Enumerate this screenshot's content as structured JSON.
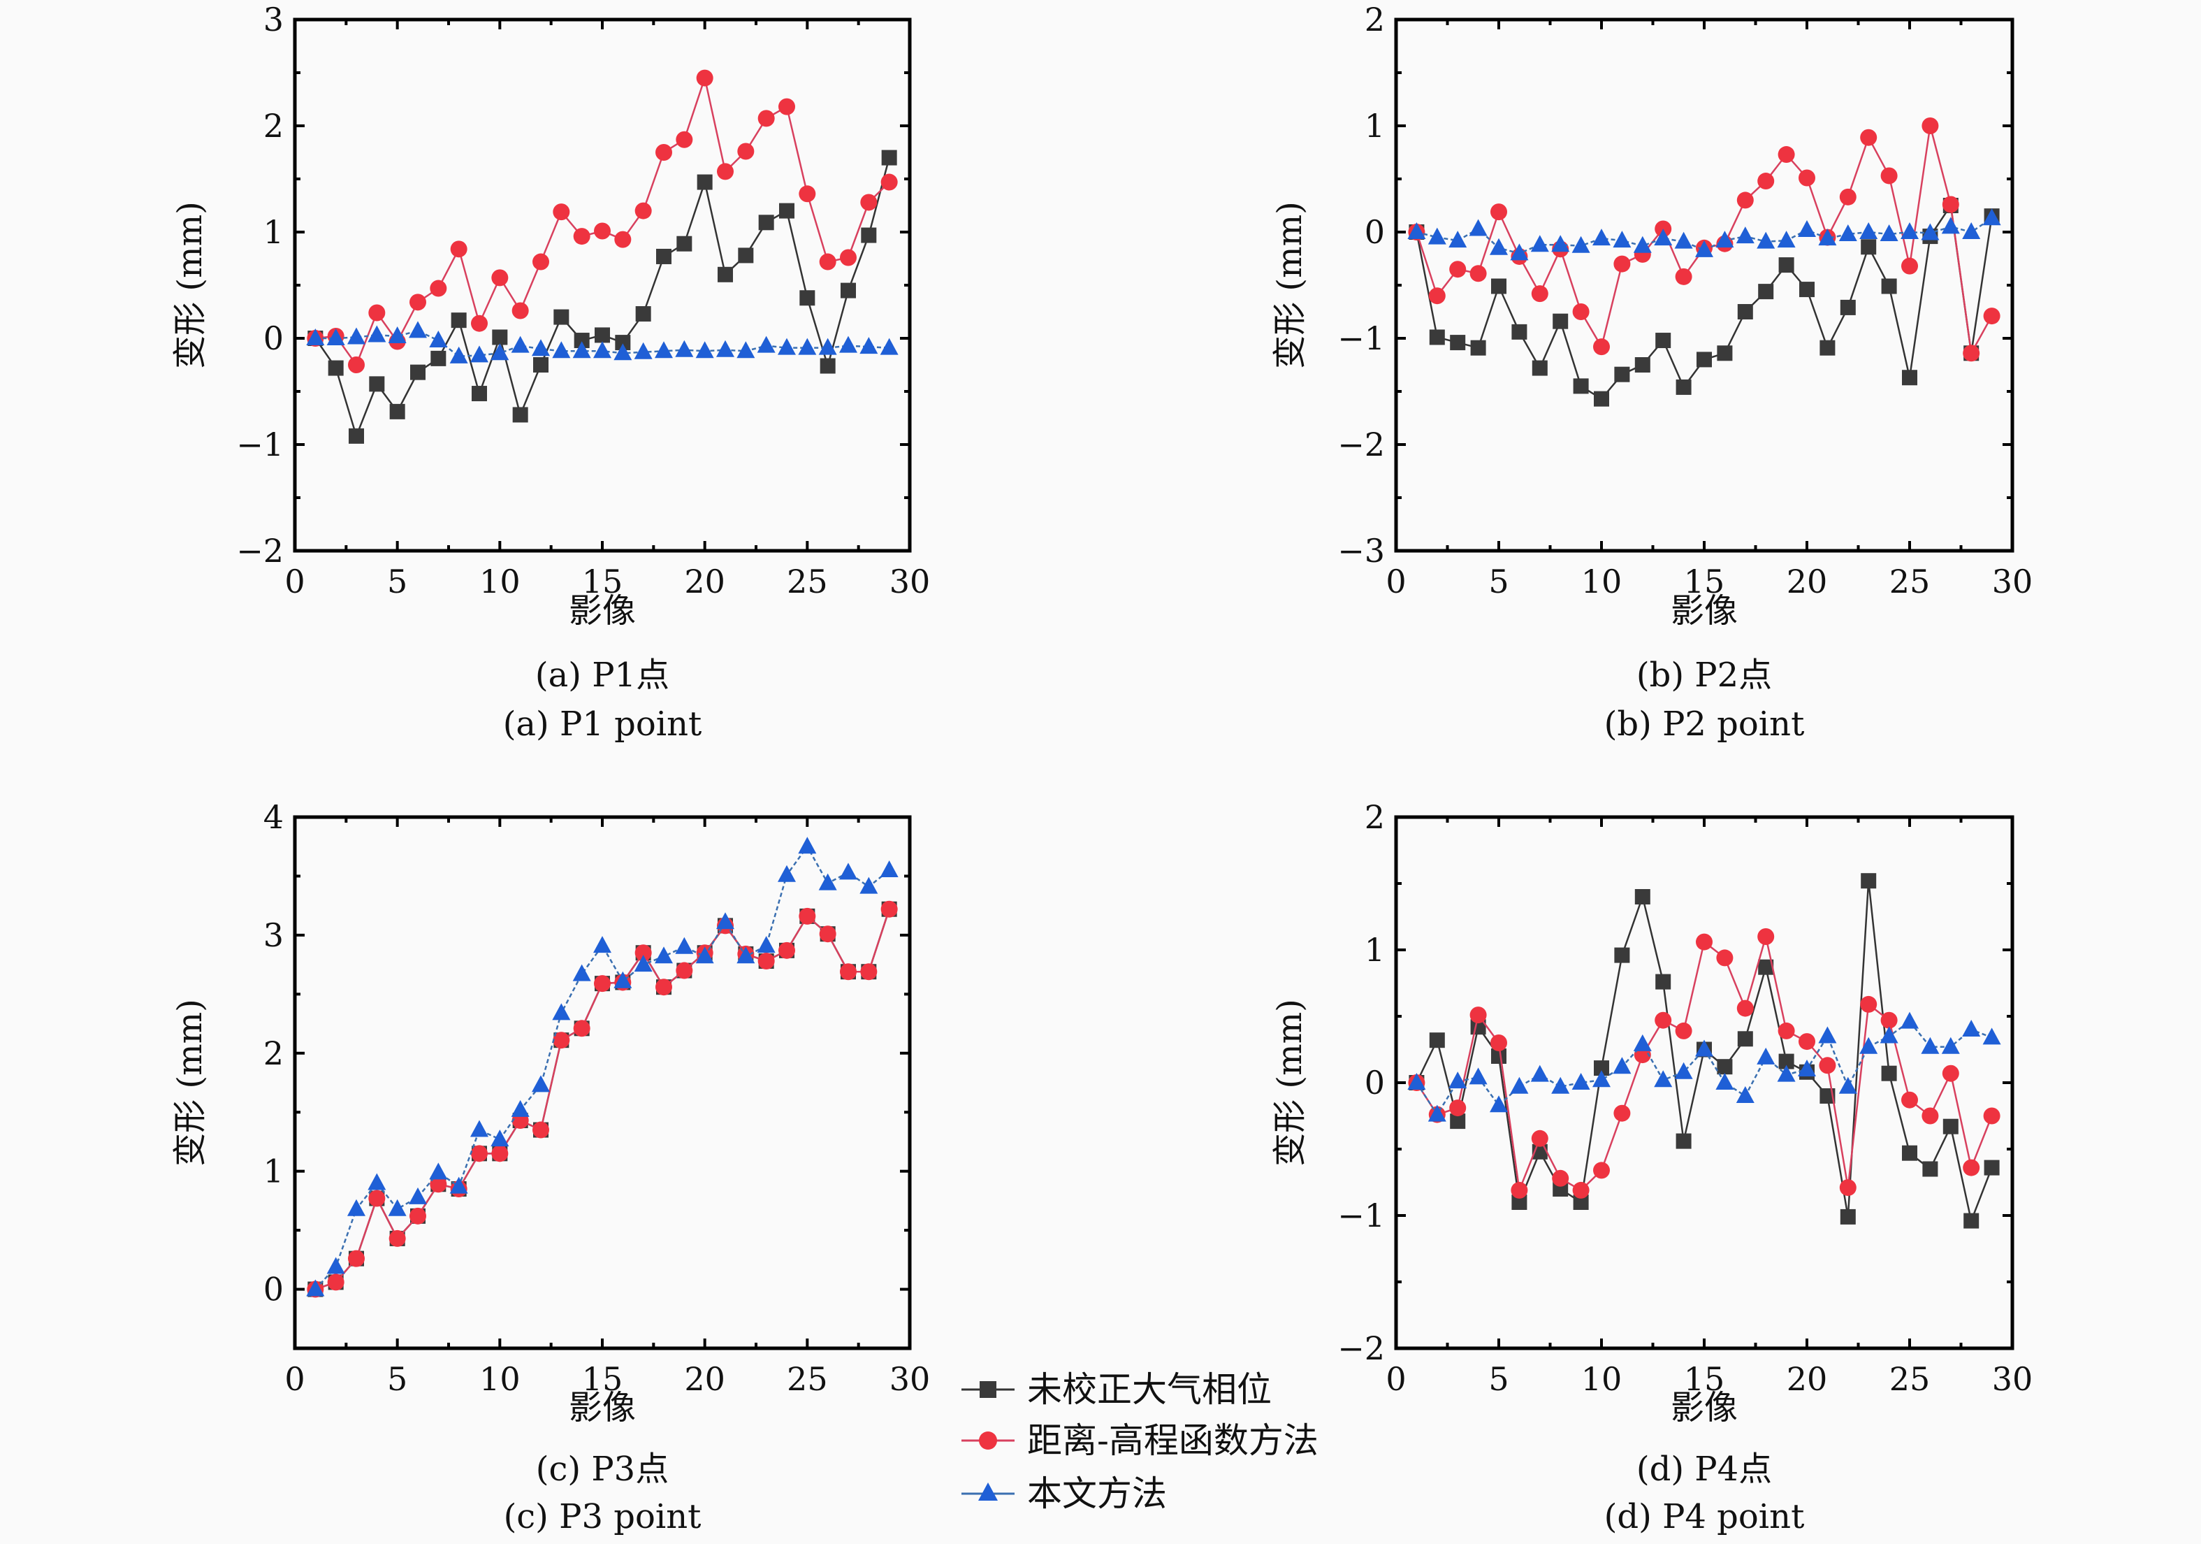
{
  "figure": {
    "series_style": {
      "uncorrected": {
        "color": "#3a3a3a",
        "line_color": "#333333",
        "marker": "square"
      },
      "distance_elevation": {
        "color": "#ee3340",
        "line_color": "#d8405e",
        "marker": "circle"
      },
      "proposed": {
        "color": "#1f5fd6",
        "line_color": "#3a6fb0",
        "marker": "triangle"
      }
    },
    "legend": [
      {
        "key": "uncorrected",
        "label": "未校正大气相位"
      },
      {
        "key": "distance_elevation",
        "label": "距离-高程函数方法"
      },
      {
        "key": "proposed",
        "label": "本文方法"
      }
    ]
  },
  "chart_data": [
    {
      "type": "line",
      "id": "a",
      "caption_cn": "(a) P1点",
      "caption_en": "(a) P1 point",
      "xlabel": "影像",
      "ylabel": "变形 (mm)",
      "xlim": [
        0,
        30
      ],
      "ylim": [
        -2,
        3
      ],
      "xticks": [
        0,
        5,
        10,
        15,
        20,
        25,
        30
      ],
      "yticks": [
        -2,
        -1,
        0,
        1,
        2,
        3
      ],
      "ytick_labels": [
        "−2",
        "−1",
        "0",
        "1",
        "2",
        "3"
      ],
      "grid": false,
      "x": [
        1,
        2,
        3,
        4,
        5,
        6,
        7,
        8,
        9,
        10,
        11,
        12,
        13,
        14,
        15,
        16,
        17,
        18,
        19,
        20,
        21,
        22,
        23,
        24,
        25,
        26,
        27,
        28,
        29
      ],
      "series": [
        {
          "key": "uncorrected",
          "name": "未校正大气相位",
          "values": [
            0,
            -0.28,
            -0.92,
            -0.43,
            -0.69,
            -0.32,
            -0.19,
            0.17,
            -0.52,
            0.01,
            -0.72,
            -0.25,
            0.2,
            -0.02,
            0.03,
            -0.04,
            0.23,
            0.77,
            0.89,
            1.47,
            0.6,
            0.78,
            1.09,
            1.2,
            0.38,
            -0.26,
            0.45,
            0.97,
            1.7
          ]
        },
        {
          "key": "distance_elevation",
          "name": "距离-高程函数方法",
          "values": [
            0,
            0.02,
            -0.25,
            0.24,
            -0.03,
            0.34,
            0.47,
            0.84,
            0.14,
            0.57,
            0.26,
            0.72,
            1.19,
            0.96,
            1.01,
            0.93,
            1.2,
            1.75,
            1.87,
            2.45,
            1.57,
            1.76,
            2.07,
            2.18,
            1.36,
            0.72,
            0.76,
            1.28,
            1.47
          ]
        },
        {
          "key": "proposed",
          "name": "本文方法",
          "values": [
            0,
            0,
            0.01,
            0.03,
            0.02,
            0.07,
            -0.02,
            -0.17,
            -0.16,
            -0.14,
            -0.07,
            -0.1,
            -0.12,
            -0.12,
            -0.12,
            -0.14,
            -0.13,
            -0.12,
            -0.11,
            -0.12,
            -0.11,
            -0.12,
            -0.07,
            -0.09,
            -0.09,
            -0.09,
            -0.07,
            -0.08,
            -0.09
          ]
        }
      ]
    },
    {
      "type": "line",
      "id": "b",
      "caption_cn": "(b) P2点",
      "caption_en": "(b) P2 point",
      "xlabel": "影像",
      "ylabel": "变形 (mm)",
      "xlim": [
        0,
        30
      ],
      "ylim": [
        -3,
        2
      ],
      "xticks": [
        0,
        5,
        10,
        15,
        20,
        25,
        30
      ],
      "yticks": [
        -3,
        -2,
        -1,
        0,
        1,
        2
      ],
      "ytick_labels": [
        "−3",
        "−2",
        "−1",
        "0",
        "1",
        "2"
      ],
      "grid": false,
      "x": [
        1,
        2,
        3,
        4,
        5,
        6,
        7,
        8,
        9,
        10,
        11,
        12,
        13,
        14,
        15,
        16,
        17,
        18,
        19,
        20,
        21,
        22,
        23,
        24,
        25,
        26,
        27,
        28,
        29
      ],
      "series": [
        {
          "key": "uncorrected",
          "name": "未校正大气相位",
          "values": [
            0,
            -0.99,
            -1.04,
            -1.09,
            -0.51,
            -0.94,
            -1.28,
            -0.84,
            -1.45,
            -1.57,
            -1.34,
            -1.25,
            -1.02,
            -1.46,
            -1.2,
            -1.14,
            -0.75,
            -0.56,
            -0.31,
            -0.54,
            -1.09,
            -0.71,
            -0.14,
            -0.51,
            -1.37,
            -0.04,
            0.25,
            -1.14,
            0.15
          ]
        },
        {
          "key": "distance_elevation",
          "name": "距离-高程函数方法",
          "values": [
            0,
            -0.6,
            -0.35,
            -0.39,
            0.19,
            -0.23,
            -0.58,
            -0.16,
            -0.75,
            -1.08,
            -0.3,
            -0.21,
            0.03,
            -0.42,
            -0.15,
            -0.11,
            0.3,
            0.48,
            0.73,
            0.51,
            -0.05,
            0.33,
            0.89,
            0.53,
            -0.32,
            1.0,
            0.26,
            -1.14,
            -0.79
          ]
        },
        {
          "key": "proposed",
          "name": "本文方法",
          "values": [
            0,
            -0.05,
            -0.08,
            0.03,
            -0.15,
            -0.2,
            -0.12,
            -0.12,
            -0.13,
            -0.06,
            -0.08,
            -0.13,
            -0.06,
            -0.09,
            -0.17,
            -0.08,
            -0.04,
            -0.09,
            -0.08,
            0.02,
            -0.06,
            -0.02,
            0.0,
            -0.02,
            0.0,
            -0.01,
            0.05,
            0.0,
            0.13
          ]
        }
      ]
    },
    {
      "type": "line",
      "id": "c",
      "caption_cn": "(c) P3点",
      "caption_en": "(c) P3 point",
      "xlabel": "影像",
      "ylabel": "变形 (mm)",
      "xlim": [
        0,
        30
      ],
      "ylim": [
        -0.5,
        4
      ],
      "xticks": [
        0,
        5,
        10,
        15,
        20,
        25,
        30
      ],
      "yticks": [
        0,
        1,
        2,
        3,
        4
      ],
      "ytick_labels": [
        "0",
        "1",
        "2",
        "3",
        "4"
      ],
      "grid": false,
      "x": [
        1,
        2,
        3,
        4,
        5,
        6,
        7,
        8,
        9,
        10,
        11,
        12,
        13,
        14,
        15,
        16,
        17,
        18,
        19,
        20,
        21,
        22,
        23,
        24,
        25,
        26,
        27,
        28,
        29
      ],
      "series": [
        {
          "key": "uncorrected",
          "name": "未校正大气相位",
          "values": [
            0,
            0.06,
            0.26,
            0.77,
            0.43,
            0.62,
            0.89,
            0.85,
            1.15,
            1.15,
            1.43,
            1.35,
            2.11,
            2.21,
            2.59,
            2.6,
            2.85,
            2.56,
            2.7,
            2.85,
            3.08,
            2.84,
            2.78,
            2.87,
            3.16,
            3.01,
            2.69,
            2.69,
            3.22
          ]
        },
        {
          "key": "distance_elevation",
          "name": "距离-高程函数方法",
          "values": [
            0,
            0.06,
            0.26,
            0.77,
            0.43,
            0.62,
            0.89,
            0.85,
            1.15,
            1.15,
            1.43,
            1.35,
            2.11,
            2.21,
            2.59,
            2.6,
            2.85,
            2.56,
            2.7,
            2.85,
            3.08,
            2.84,
            2.78,
            2.87,
            3.16,
            3.01,
            2.69,
            2.69,
            3.22
          ]
        },
        {
          "key": "proposed",
          "name": "本文方法",
          "values": [
            0,
            0.19,
            0.68,
            0.9,
            0.68,
            0.78,
            0.99,
            0.87,
            1.35,
            1.27,
            1.52,
            1.73,
            2.34,
            2.67,
            2.91,
            2.61,
            2.75,
            2.82,
            2.9,
            2.82,
            3.11,
            2.82,
            2.91,
            3.51,
            3.75,
            3.44,
            3.53,
            3.41,
            3.55
          ]
        }
      ]
    },
    {
      "type": "line",
      "id": "d",
      "caption_cn": "(d) P4点",
      "caption_en": "(d) P4 point",
      "xlabel": "影像",
      "ylabel": "变形 (mm)",
      "xlim": [
        0,
        30
      ],
      "ylim": [
        -2,
        2
      ],
      "xticks": [
        0,
        5,
        10,
        15,
        20,
        25,
        30
      ],
      "yticks": [
        -2,
        -1,
        0,
        1,
        2
      ],
      "ytick_labels": [
        "−2",
        "−1",
        "0",
        "1",
        "2"
      ],
      "grid": false,
      "x": [
        1,
        2,
        3,
        4,
        5,
        6,
        7,
        8,
        9,
        10,
        11,
        12,
        13,
        14,
        15,
        16,
        17,
        18,
        19,
        20,
        21,
        22,
        23,
        24,
        25,
        26,
        27,
        28,
        29
      ],
      "series": [
        {
          "key": "uncorrected",
          "name": "未校正大气相位",
          "values": [
            0,
            0.32,
            -0.29,
            0.42,
            0.2,
            -0.9,
            -0.52,
            -0.8,
            -0.9,
            0.11,
            0.96,
            1.4,
            0.76,
            -0.44,
            0.25,
            0.12,
            0.33,
            0.87,
            0.16,
            0.08,
            -0.1,
            -1.01,
            1.52,
            0.07,
            -0.53,
            -0.65,
            -0.33,
            -1.04,
            -0.64
          ]
        },
        {
          "key": "distance_elevation",
          "name": "距离-高程函数方法",
          "values": [
            0,
            -0.24,
            -0.19,
            0.51,
            0.3,
            -0.81,
            -0.42,
            -0.72,
            -0.81,
            -0.66,
            -0.23,
            0.21,
            0.47,
            0.39,
            1.06,
            0.94,
            0.56,
            1.1,
            0.39,
            0.31,
            0.13,
            -0.79,
            0.59,
            0.47,
            -0.13,
            -0.25,
            0.07,
            -0.64,
            -0.25
          ]
        },
        {
          "key": "proposed",
          "name": "本文方法",
          "values": [
            0,
            -0.24,
            0.01,
            0.04,
            -0.17,
            -0.03,
            0.06,
            -0.03,
            0.0,
            0.02,
            0.12,
            0.29,
            0.02,
            0.08,
            0.25,
            0.0,
            -0.1,
            0.19,
            0.06,
            0.1,
            0.35,
            -0.03,
            0.27,
            0.35,
            0.46,
            0.27,
            0.27,
            0.4,
            0.34
          ]
        }
      ]
    }
  ]
}
